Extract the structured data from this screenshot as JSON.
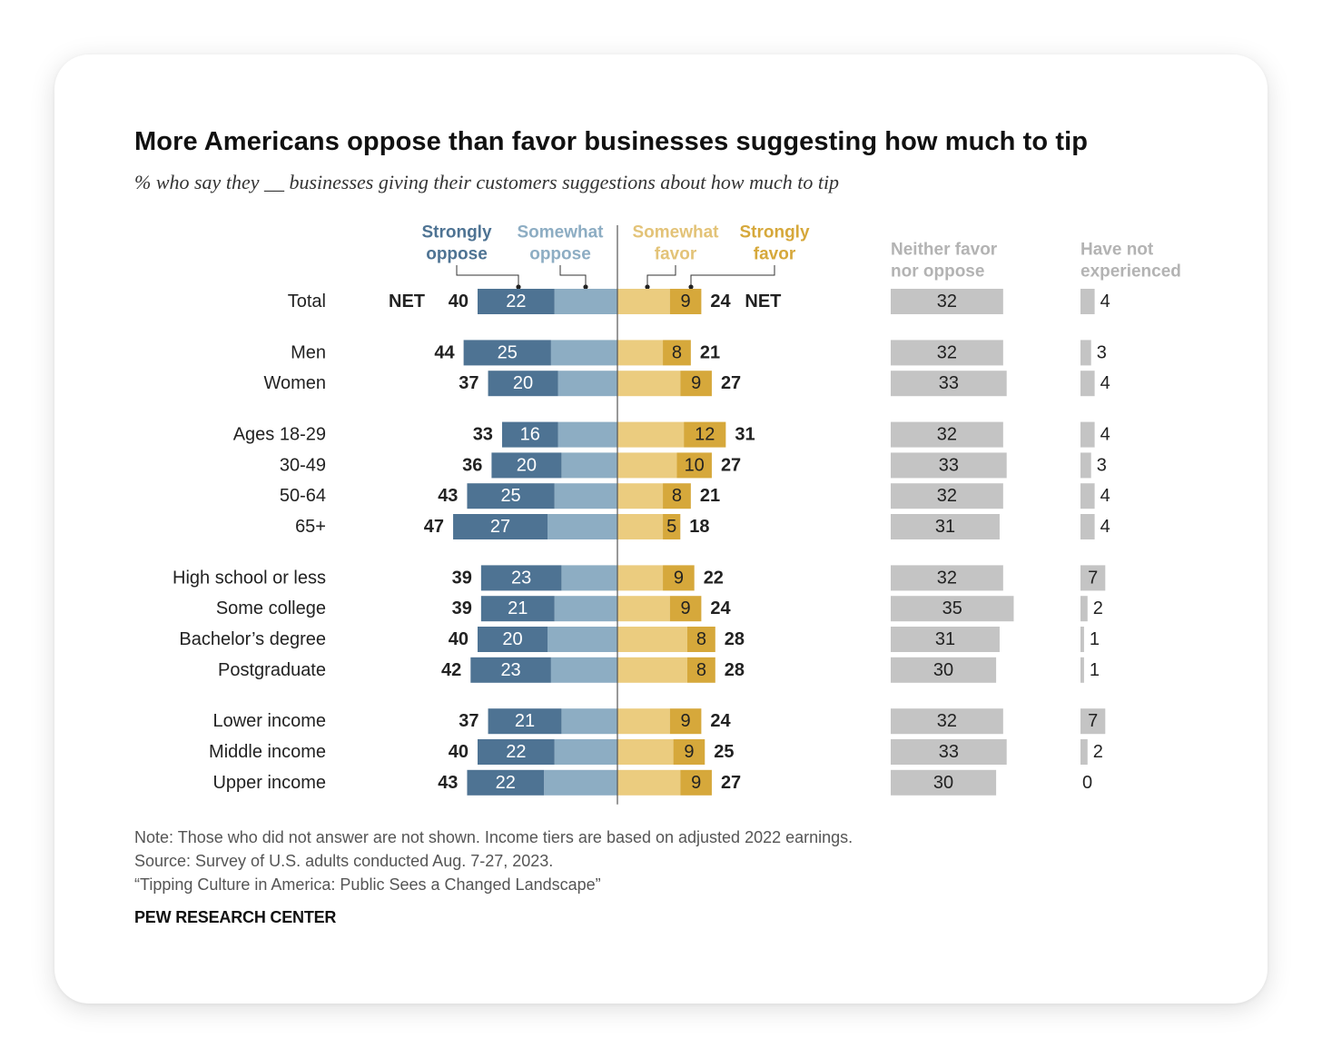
{
  "title": "More Americans oppose than favor businesses suggesting how much to tip",
  "subtitle": "% who say they __ businesses giving their customers suggestions about how much to tip",
  "colors": {
    "strongly_oppose": "#4e7393",
    "somewhat_oppose": "#8dadc3",
    "somewhat_favor": "#ebcc7f",
    "strongly_favor": "#d6a83b",
    "neither": "#c4c4c4",
    "not_experienced": "#c4c4c4",
    "header_gray": "#b3b3b3",
    "axis": "#555555"
  },
  "chart_data": {
    "type": "bar",
    "orientation": "horizontal",
    "stacking": "diverging",
    "column_headers": {
      "strongly_oppose": [
        "Strongly",
        "oppose"
      ],
      "somewhat_oppose": [
        "Somewhat",
        "oppose"
      ],
      "somewhat_favor": [
        "Somewhat",
        "favor"
      ],
      "strongly_favor": [
        "Strongly",
        "favor"
      ],
      "neither": [
        "Neither favor",
        "nor oppose"
      ],
      "not_experienced": [
        "Have not",
        "experienced"
      ]
    },
    "net_label": "NET",
    "groups": [
      {
        "rows": [
          {
            "label": "Total",
            "net_oppose": 40,
            "strongly_oppose": 22,
            "net_favor": 24,
            "strongly_favor": 9,
            "neither": 32,
            "not_experienced": 4
          }
        ]
      },
      {
        "rows": [
          {
            "label": "Men",
            "net_oppose": 44,
            "strongly_oppose": 25,
            "net_favor": 21,
            "strongly_favor": 8,
            "neither": 32,
            "not_experienced": 3
          },
          {
            "label": "Women",
            "net_oppose": 37,
            "strongly_oppose": 20,
            "net_favor": 27,
            "strongly_favor": 9,
            "neither": 33,
            "not_experienced": 4
          }
        ]
      },
      {
        "rows": [
          {
            "label": "Ages 18-29",
            "net_oppose": 33,
            "strongly_oppose": 16,
            "net_favor": 31,
            "strongly_favor": 12,
            "neither": 32,
            "not_experienced": 4
          },
          {
            "label": "30-49",
            "net_oppose": 36,
            "strongly_oppose": 20,
            "net_favor": 27,
            "strongly_favor": 10,
            "neither": 33,
            "not_experienced": 3
          },
          {
            "label": "50-64",
            "net_oppose": 43,
            "strongly_oppose": 25,
            "net_favor": 21,
            "strongly_favor": 8,
            "neither": 32,
            "not_experienced": 4
          },
          {
            "label": "65+",
            "net_oppose": 47,
            "strongly_oppose": 27,
            "net_favor": 18,
            "strongly_favor": 5,
            "neither": 31,
            "not_experienced": 4
          }
        ]
      },
      {
        "rows": [
          {
            "label": "High school or less",
            "net_oppose": 39,
            "strongly_oppose": 23,
            "net_favor": 22,
            "strongly_favor": 9,
            "neither": 32,
            "not_experienced": 7
          },
          {
            "label": "Some college",
            "net_oppose": 39,
            "strongly_oppose": 21,
            "net_favor": 24,
            "strongly_favor": 9,
            "neither": 35,
            "not_experienced": 2
          },
          {
            "label": "Bachelor’s degree",
            "net_oppose": 40,
            "strongly_oppose": 20,
            "net_favor": 28,
            "strongly_favor": 8,
            "neither": 31,
            "not_experienced": 1
          },
          {
            "label": "Postgraduate",
            "net_oppose": 42,
            "strongly_oppose": 23,
            "net_favor": 28,
            "strongly_favor": 8,
            "neither": 30,
            "not_experienced": 1
          }
        ]
      },
      {
        "rows": [
          {
            "label": "Lower income",
            "net_oppose": 37,
            "strongly_oppose": 21,
            "net_favor": 24,
            "strongly_favor": 9,
            "neither": 32,
            "not_experienced": 7
          },
          {
            "label": "Middle income",
            "net_oppose": 40,
            "strongly_oppose": 22,
            "net_favor": 25,
            "strongly_favor": 9,
            "neither": 33,
            "not_experienced": 2
          },
          {
            "label": "Upper income",
            "net_oppose": 43,
            "strongly_oppose": 22,
            "net_favor": 27,
            "strongly_favor": 9,
            "neither": 30,
            "not_experienced": 0
          }
        ]
      }
    ]
  },
  "footer": {
    "note": "Note: Those who did not answer are not shown. Income tiers are based on adjusted 2022 earnings.",
    "source": "Source: Survey of U.S. adults conducted Aug. 7-27, 2023.",
    "report": "“Tipping Culture in America: Public Sees a Changed Landscape”",
    "brand": "PEW RESEARCH CENTER"
  }
}
